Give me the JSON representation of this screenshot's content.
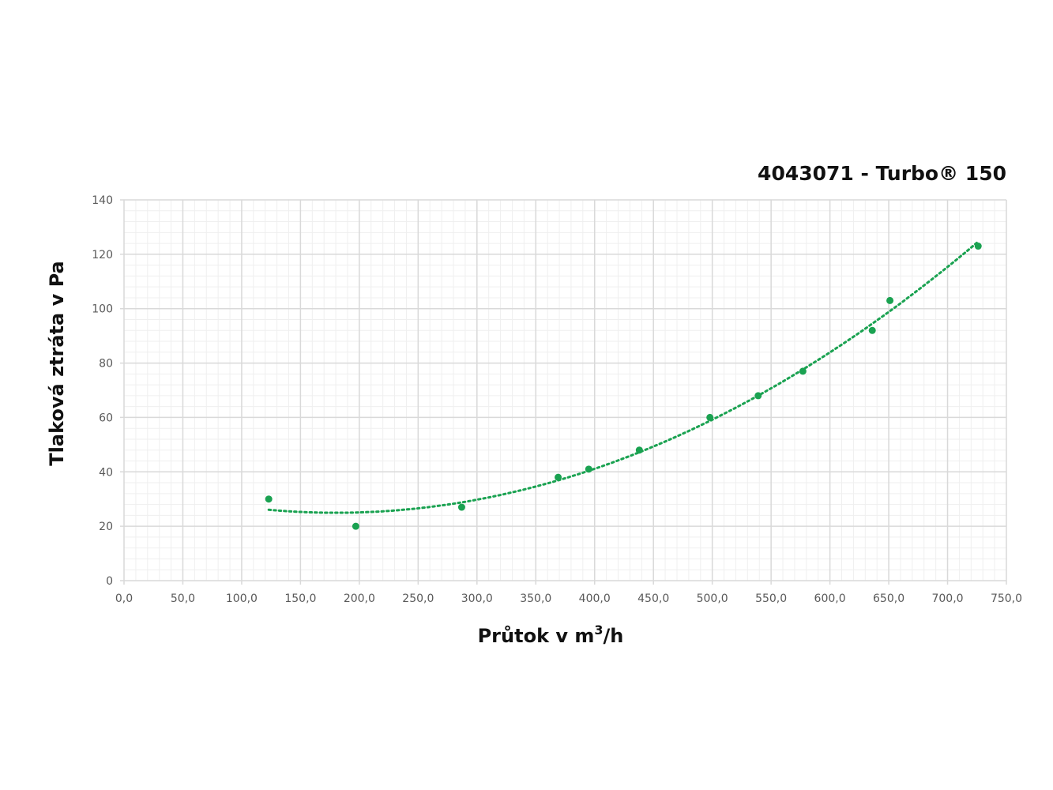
{
  "chart_data": {
    "type": "scatter",
    "title": "4043071 - Turbo® 150",
    "xlabel": "Průtok v m³/h",
    "xlabel_main": "Průtok v m",
    "xlabel_sup": "3",
    "xlabel_tail": "/h",
    "ylabel": "Tlaková ztráta v Pa",
    "xlim": [
      0,
      750
    ],
    "ylim": [
      0,
      140
    ],
    "x_major_step": 50,
    "y_major_step": 20,
    "x_minor_step": 10,
    "y_minor_step": 4,
    "grid": true,
    "x_tick_labels": [
      "0,0",
      "50,0",
      "100,0",
      "150,0",
      "200,0",
      "250,0",
      "300,0",
      "350,0",
      "400,0",
      "450,0",
      "500,0",
      "550,0",
      "600,0",
      "650,0",
      "700,0",
      "750,0"
    ],
    "y_tick_labels": [
      "0",
      "20",
      "40",
      "60",
      "80",
      "100",
      "120",
      "140"
    ],
    "points": [
      {
        "x": 123,
        "y": 30
      },
      {
        "x": 197,
        "y": 20
      },
      {
        "x": 287,
        "y": 27
      },
      {
        "x": 369,
        "y": 38
      },
      {
        "x": 395,
        "y": 41
      },
      {
        "x": 438,
        "y": 48
      },
      {
        "x": 498,
        "y": 60
      },
      {
        "x": 539,
        "y": 68
      },
      {
        "x": 577,
        "y": 77
      },
      {
        "x": 636,
        "y": 92
      },
      {
        "x": 651,
        "y": 103
      },
      {
        "x": 726,
        "y": 123
      }
    ],
    "trendline": {
      "type": "polynomial",
      "order": 2,
      "style": "dotted"
    },
    "colors": {
      "series": "#1aa251",
      "grid_major": "#d9d9d9",
      "grid_minor": "#efefef"
    }
  }
}
